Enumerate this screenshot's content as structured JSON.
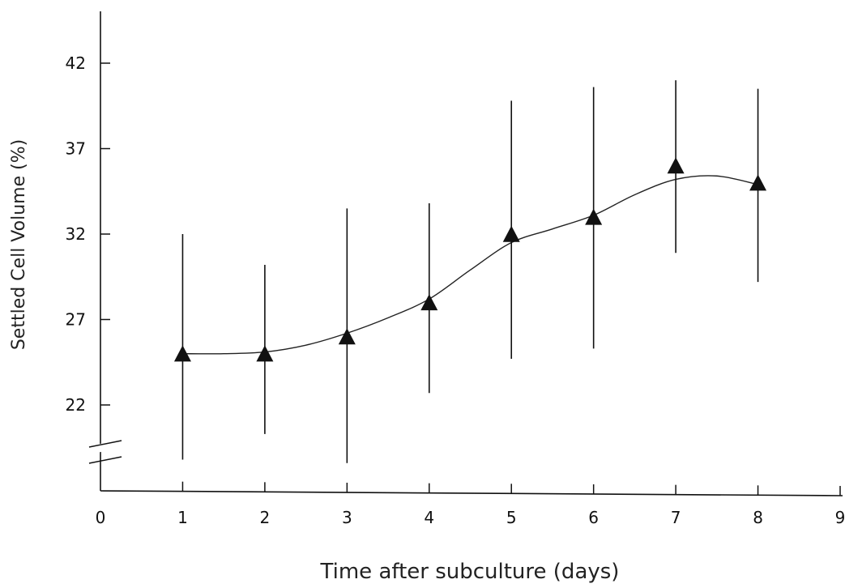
{
  "chart_data": {
    "type": "line",
    "title": "",
    "xlabel": "Time after subculture (days)",
    "ylabel": "Settled Cell Volume (%)",
    "xlim": [
      0,
      9
    ],
    "ylim": [
      22,
      42
    ],
    "x_ticks": [
      0,
      1,
      2,
      3,
      4,
      5,
      6,
      7,
      8,
      9
    ],
    "y_ticks": [
      22,
      27,
      32,
      37,
      42
    ],
    "y_axis_break": true,
    "grid": false,
    "marker": "triangle",
    "series": [
      {
        "x": [
          1,
          2,
          3,
          4,
          5,
          6,
          7,
          8
        ],
        "y": [
          24.9,
          24.9,
          25.9,
          27.9,
          31.9,
          32.9,
          35.9,
          34.9
        ],
        "error_upper": [
          32.0,
          30.2,
          33.5,
          33.8,
          39.8,
          40.6,
          41.0,
          40.5
        ],
        "error_lower": [
          18.8,
          20.3,
          18.6,
          22.7,
          24.7,
          25.3,
          30.9,
          29.2
        ],
        "fit_curve": [
          [
            1,
            25.0
          ],
          [
            1.5,
            25.0
          ],
          [
            2,
            25.1
          ],
          [
            2.5,
            25.5
          ],
          [
            3,
            26.2
          ],
          [
            3.5,
            27.1
          ],
          [
            4,
            28.2
          ],
          [
            4.5,
            29.9
          ],
          [
            5,
            31.5
          ],
          [
            5.5,
            32.3
          ],
          [
            6,
            33.1
          ],
          [
            6.5,
            34.3
          ],
          [
            7,
            35.2
          ],
          [
            7.5,
            35.4
          ],
          [
            8,
            34.9
          ]
        ]
      }
    ]
  }
}
